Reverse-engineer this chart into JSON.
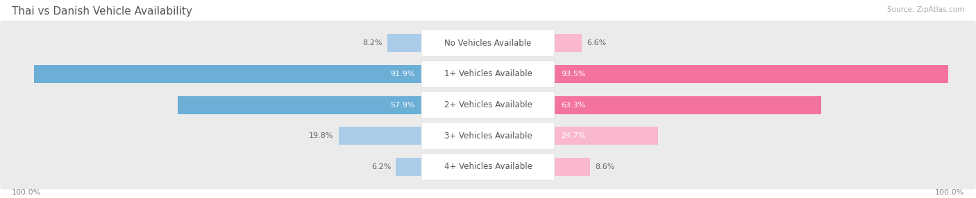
{
  "title": "Thai vs Danish Vehicle Availability",
  "source": "Source: ZipAtlas.com",
  "categories": [
    "No Vehicles Available",
    "1+ Vehicles Available",
    "2+ Vehicles Available",
    "3+ Vehicles Available",
    "4+ Vehicles Available"
  ],
  "thai_values": [
    8.2,
    91.9,
    57.9,
    19.8,
    6.2
  ],
  "danish_values": [
    6.6,
    93.5,
    63.3,
    24.7,
    8.6
  ],
  "thai_color": "#6baed6",
  "danish_color": "#f472a0",
  "danish_color_light": "#f9b8ce",
  "thai_color_light": "#aacce8",
  "row_bg": "#ebebeb",
  "row_bg_alt": "#f5f5f5",
  "label_bg": "#ffffff",
  "max_value": 100.0,
  "title_fontsize": 11,
  "label_fontsize": 8.5,
  "value_fontsize": 8,
  "legend_fontsize": 9,
  "background": "#ffffff",
  "title_color": "#555555",
  "source_color": "#aaaaaa",
  "value_color_outside": "#666666",
  "value_color_inside": "#ffffff"
}
